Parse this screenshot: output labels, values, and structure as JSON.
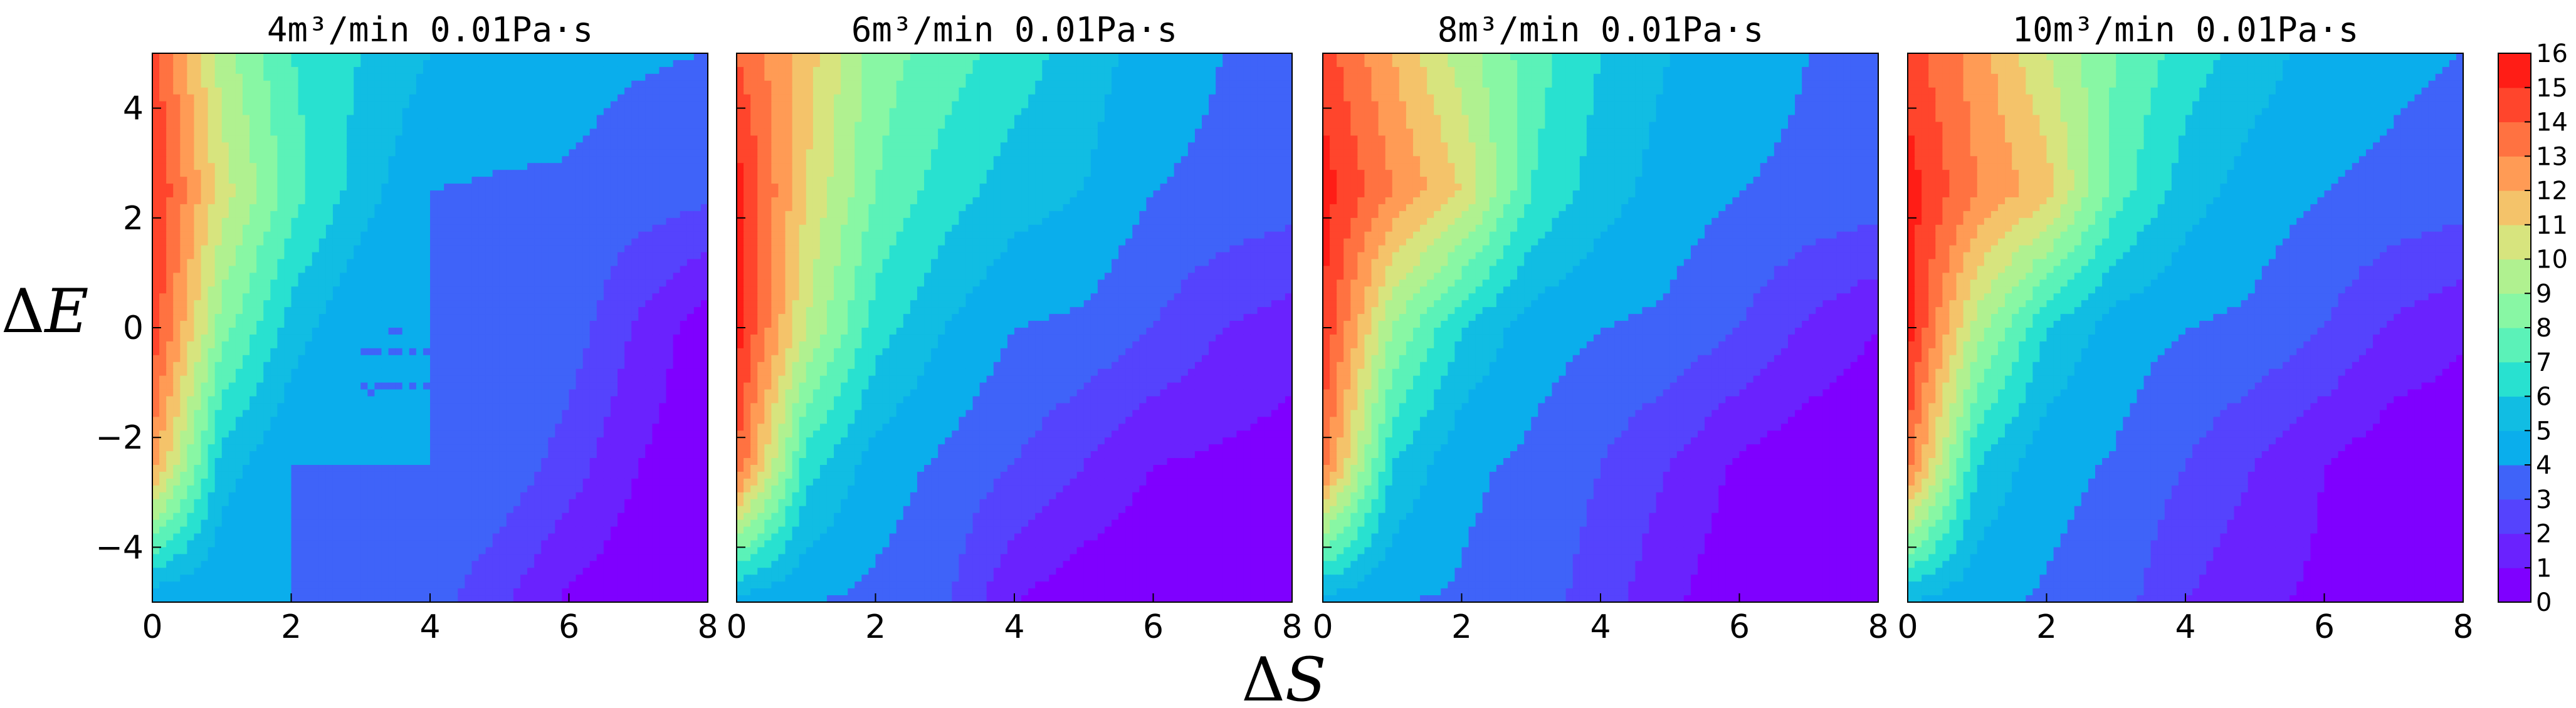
{
  "chart_data": [
    {
      "type": "heatmap",
      "title": "4m³/min  0.01Pa·s",
      "xlabel": "ΔS",
      "ylabel": "ΔE",
      "xlim": [
        0,
        8
      ],
      "ylim": [
        -5,
        5
      ],
      "x": [
        0,
        1,
        2,
        3,
        4,
        5,
        6,
        7,
        8
      ],
      "y": [
        5,
        2.5,
        0,
        -2.5,
        -5
      ],
      "z": [
        [
          14.5,
          9.5,
          7.0,
          6.0,
          5.0,
          4.6,
          4.3,
          4.1,
          4.0
        ],
        [
          15.2,
          10.5,
          7.5,
          5.5,
          4.0,
          3.9,
          3.9,
          3.6,
          3.3
        ],
        [
          14.8,
          8.5,
          5.5,
          4.0,
          4.0,
          3.9,
          3.6,
          1.8,
          0.4
        ],
        [
          12.5,
          5.5,
          4.0,
          4.0,
          4.0,
          3.8,
          2.5,
          1.0,
          0.2
        ],
        [
          4.0,
          4.0,
          4.0,
          3.8,
          3.5,
          2.2,
          0.8,
          0.2,
          0.0
        ]
      ]
    },
    {
      "type": "heatmap",
      "title": "6m³/min  0.01Pa·s",
      "xlabel": "ΔS",
      "ylabel": "ΔE",
      "xlim": [
        0,
        8
      ],
      "ylim": [
        -5,
        5
      ],
      "x": [
        0,
        1,
        2,
        3,
        4,
        5,
        6,
        7,
        8
      ],
      "y": [
        5,
        2.5,
        0,
        -2.5,
        -5
      ],
      "z": [
        [
          14.0,
          11.5,
          8.5,
          7.5,
          6.5,
          5.5,
          4.5,
          4.0,
          4.0
        ],
        [
          15.5,
          11.0,
          8.0,
          6.5,
          5.5,
          5.0,
          4.0,
          3.8,
          3.5
        ],
        [
          15.5,
          10.0,
          6.5,
          5.0,
          4.0,
          3.8,
          3.0,
          2.0,
          1.5
        ],
        [
          14.0,
          6.5,
          4.5,
          3.8,
          3.0,
          2.0,
          1.0,
          0.8,
          0.5
        ],
        [
          4.5,
          4.0,
          3.8,
          3.2,
          1.0,
          0.3,
          0.0,
          0.0,
          0.0
        ]
      ]
    },
    {
      "type": "heatmap",
      "title": "8m³/min  0.01Pa·s",
      "xlabel": "ΔS",
      "ylabel": "ΔE",
      "xlim": [
        0,
        8
      ],
      "ylim": [
        -5,
        5
      ],
      "x": [
        0,
        1,
        2,
        3,
        4,
        5,
        6,
        7,
        8
      ],
      "y": [
        5,
        2.5,
        0,
        -2.5,
        -5
      ],
      "z": [
        [
          14.5,
          12.0,
          9.5,
          7.5,
          6.0,
          5.0,
          4.5,
          4.0,
          4.0
        ],
        [
          15.5,
          13.0,
          11.0,
          7.0,
          5.5,
          4.5,
          4.0,
          3.8,
          3.6
        ],
        [
          15.0,
          9.0,
          6.0,
          4.5,
          4.0,
          3.8,
          3.0,
          1.8,
          1.0
        ],
        [
          13.5,
          6.0,
          4.2,
          3.8,
          3.0,
          2.0,
          0.8,
          0.3,
          0.1
        ],
        [
          4.5,
          4.0,
          3.9,
          3.5,
          2.5,
          1.2,
          0.2,
          0.0,
          0.0
        ]
      ]
    },
    {
      "type": "heatmap",
      "title": "10m³/min  0.01Pa·s",
      "xlabel": "ΔS",
      "ylabel": "ΔE",
      "xlim": [
        0,
        8
      ],
      "ylim": [
        -5,
        5
      ],
      "x": [
        0,
        1,
        2,
        3,
        4,
        5,
        6,
        7,
        8
      ],
      "y": [
        5,
        2.5,
        0,
        -2.5,
        -5
      ],
      "z": [
        [
          14.5,
          12.5,
          10.0,
          8.0,
          6.5,
          5.5,
          4.5,
          4.2,
          4.0
        ],
        [
          15.5,
          13.0,
          11.5,
          7.5,
          5.5,
          4.5,
          4.0,
          3.8,
          3.5
        ],
        [
          15.5,
          9.5,
          6.0,
          4.5,
          4.0,
          3.8,
          3.0,
          1.8,
          1.2
        ],
        [
          13.5,
          6.0,
          4.3,
          3.9,
          3.0,
          2.0,
          1.0,
          0.3,
          0.2
        ],
        [
          5.0,
          4.2,
          3.9,
          3.5,
          2.0,
          1.2,
          0.8,
          0.2,
          0.0
        ]
      ]
    }
  ],
  "x_ticks": [
    "0",
    "2",
    "4",
    "6",
    "8"
  ],
  "x_tick_values": [
    0,
    2,
    4,
    6,
    8
  ],
  "y_ticks": [
    "4",
    "2",
    "0",
    "−2",
    "−4"
  ],
  "y_tick_values": [
    4,
    2,
    0,
    -2,
    -4
  ],
  "xlabel_delta": "Δ",
  "xlabel_var": "S",
  "ylabel_delta": "Δ",
  "ylabel_var": "E",
  "colorbar": {
    "min": 0,
    "max": 16,
    "levels": 16,
    "ticks": [
      "0",
      "1",
      "2",
      "3",
      "4",
      "5",
      "6",
      "7",
      "8",
      "9",
      "10",
      "11",
      "12",
      "13",
      "14",
      "15",
      "16"
    ],
    "colors": [
      "#7f00ff",
      "#6a22fe",
      "#5543fd",
      "#3f63f9",
      "#0aaeec",
      "#11bde3",
      "#28e1d0",
      "#5bf2b8",
      "#88f7a4",
      "#b0f190",
      "#d7e47e",
      "#f4c36a",
      "#ff9b55",
      "#ff7241",
      "#ff452c",
      "#ff1d16"
    ]
  }
}
